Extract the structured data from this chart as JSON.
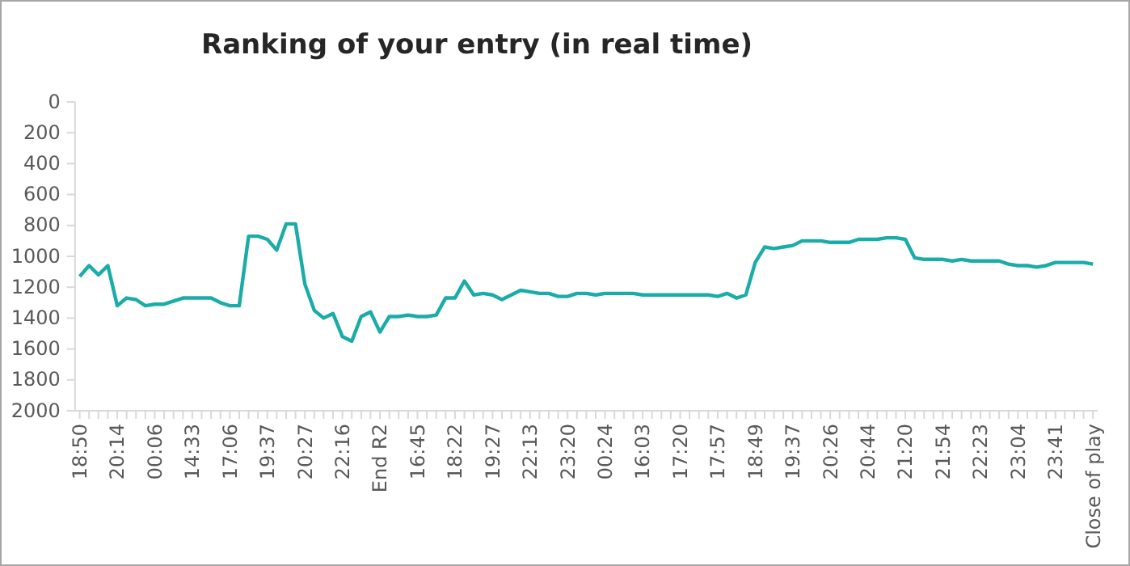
{
  "chart_data": {
    "type": "line",
    "title": "Ranking of your entry (in real time)",
    "categories": [
      "18:50",
      null,
      null,
      null,
      "20:14",
      null,
      null,
      null,
      "00:06",
      null,
      null,
      null,
      "14:33",
      null,
      null,
      null,
      "17:06",
      null,
      null,
      null,
      "19:37",
      null,
      null,
      null,
      "20:27",
      null,
      null,
      null,
      "22:16",
      null,
      null,
      null,
      "End R2",
      null,
      null,
      null,
      "16:45",
      null,
      null,
      null,
      "18:22",
      null,
      null,
      null,
      "19:27",
      null,
      null,
      null,
      "22:13",
      null,
      null,
      null,
      "23:20",
      null,
      null,
      null,
      "00:24",
      null,
      null,
      null,
      "16:03",
      null,
      null,
      null,
      "17:20",
      null,
      null,
      null,
      "17:57",
      null,
      null,
      null,
      "18:49",
      null,
      null,
      null,
      "19:37",
      null,
      null,
      null,
      "20:26",
      null,
      null,
      null,
      "20:44",
      null,
      null,
      null,
      "21:20",
      null,
      null,
      null,
      "21:54",
      null,
      null,
      null,
      "22:23",
      null,
      null,
      null,
      "23:04",
      null,
      null,
      null,
      "23:41",
      null,
      null,
      null,
      "Close of play"
    ],
    "series": [
      {
        "color": "#1aaca8",
        "values": [
          1130,
          1060,
          1120,
          1060,
          1320,
          1270,
          1280,
          1320,
          1310,
          1310,
          1290,
          1270,
          1270,
          1270,
          1270,
          1300,
          1320,
          1320,
          870,
          870,
          890,
          960,
          790,
          790,
          1180,
          1350,
          1400,
          1370,
          1520,
          1550,
          1390,
          1360,
          1490,
          1390,
          1390,
          1380,
          1390,
          1390,
          1380,
          1270,
          1270,
          1160,
          1250,
          1240,
          1250,
          1280,
          1250,
          1220,
          1230,
          1240,
          1240,
          1260,
          1260,
          1240,
          1240,
          1250,
          1240,
          1240,
          1240,
          1240,
          1250,
          1250,
          1250,
          1250,
          1250,
          1250,
          1250,
          1250,
          1260,
          1240,
          1270,
          1250,
          1040,
          940,
          950,
          940,
          930,
          900,
          900,
          900,
          910,
          910,
          910,
          890,
          890,
          890,
          880,
          880,
          890,
          1010,
          1020,
          1020,
          1020,
          1030,
          1020,
          1030,
          1030,
          1030,
          1030,
          1050,
          1060,
          1060,
          1070,
          1060,
          1040,
          1040,
          1040,
          1040,
          1050
        ]
      }
    ],
    "ylim": [
      2000,
      0
    ],
    "yticks": [
      0,
      200,
      400,
      600,
      800,
      1000,
      1200,
      1400,
      1600,
      1800,
      2000
    ],
    "marker": "none",
    "line_style": "solid"
  }
}
